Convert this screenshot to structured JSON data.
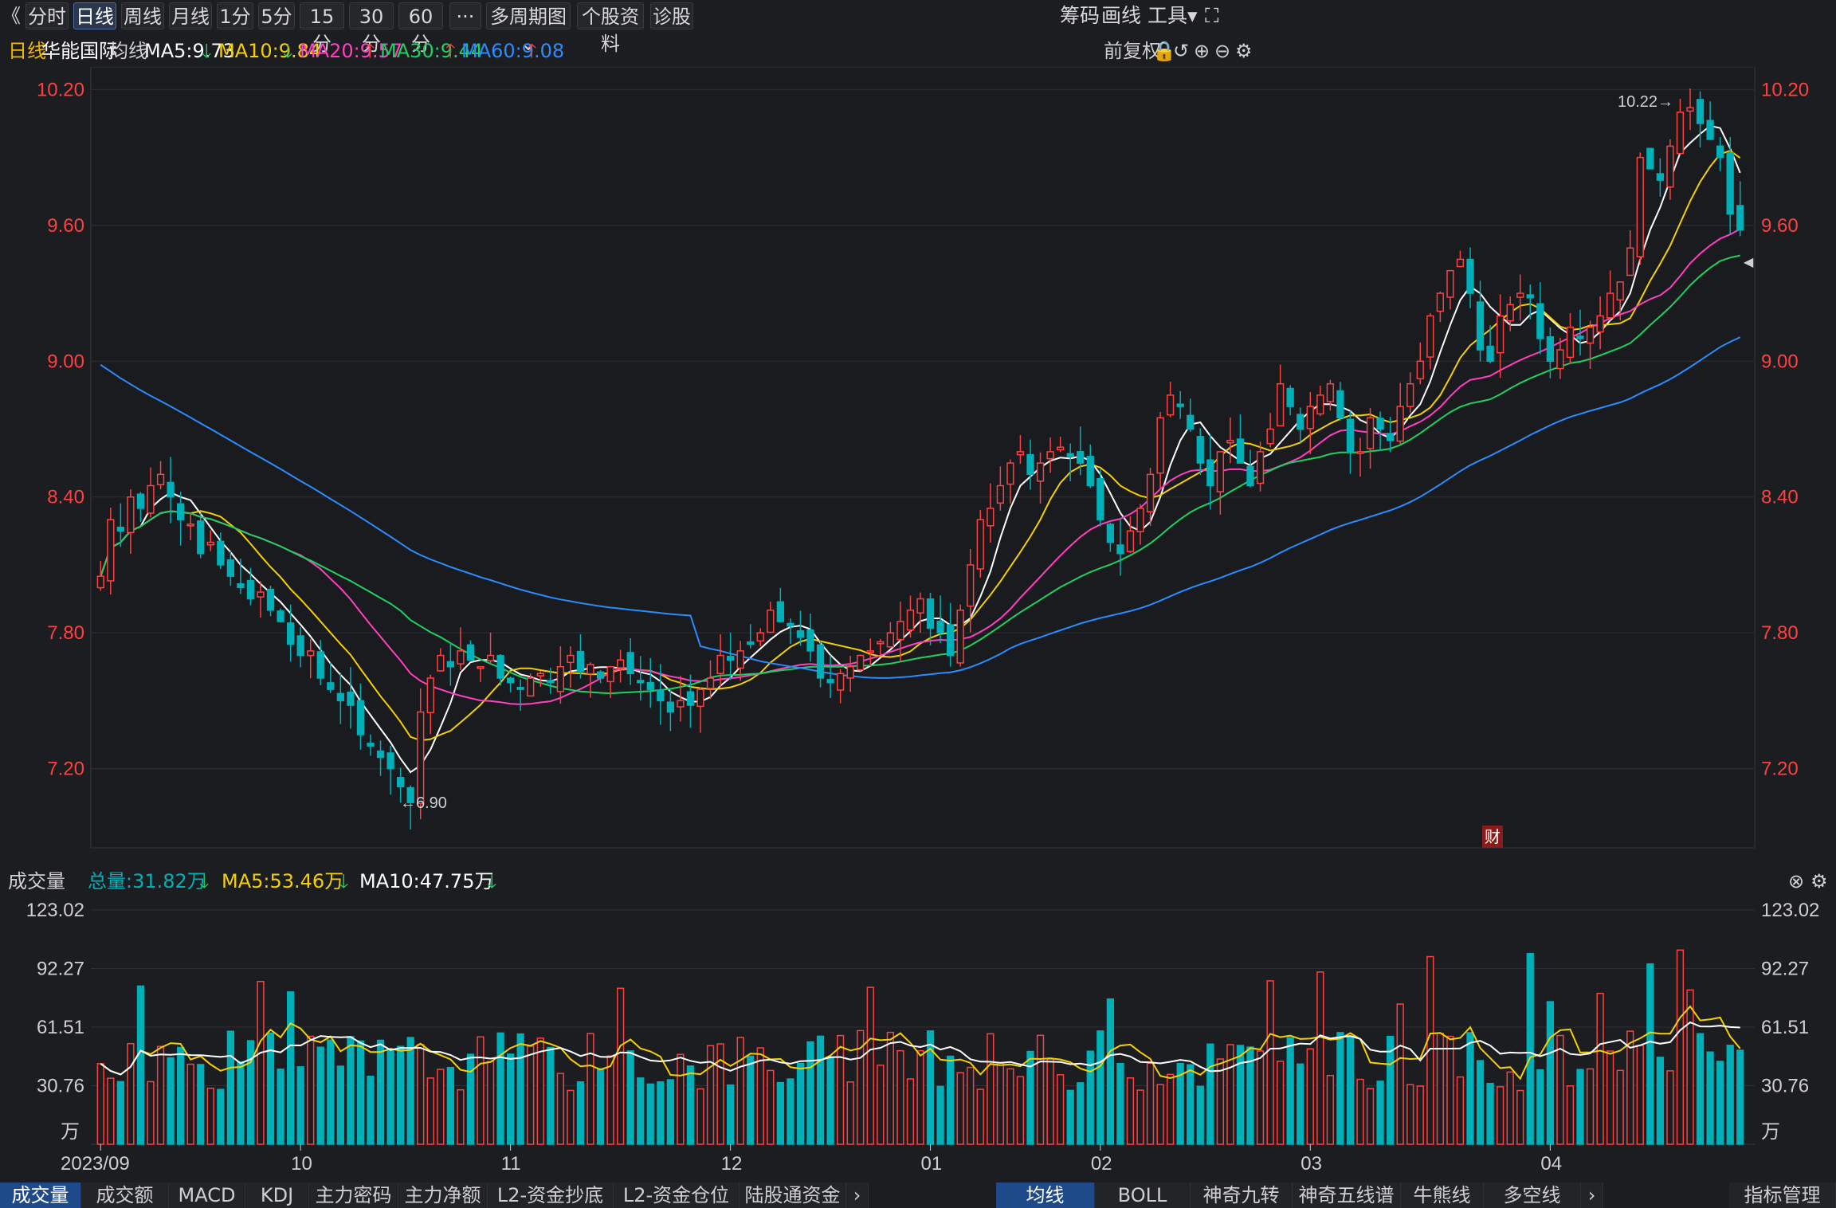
{
  "toolbar": {
    "back_icon": "double-chevron-left-icon",
    "periods": [
      "分时",
      "日线",
      "周线",
      "月线",
      "1分",
      "5分",
      "15分",
      "30分",
      "60分"
    ],
    "active_period": "日线",
    "more_label": "···",
    "multi_period": "多周期图",
    "stock_info": "个股资料",
    "diagnose": "诊股",
    "chips": "筹码",
    "draw": "画线",
    "tools": "工具",
    "fullscreen_icon": "fullscreen-icon"
  },
  "info": {
    "period": "日线",
    "stock_name": "华能国际",
    "ma_label": "均线",
    "ma5": "MA5:9.73",
    "ma10": "MA10:9.84",
    "ma20": "MA20:9.57",
    "ma30": "MA30:9.44",
    "ma60": "MA60:9.08",
    "adjust": "前复权",
    "lock_icon": "lock-icon",
    "undo_icon": "undo-icon",
    "zoom_in_icon": "zoom-in-icon",
    "zoom_out_icon": "zoom-out-icon",
    "settings_icon": "gear-icon"
  },
  "price_axis": {
    "ticks": [
      "10.20",
      "9.60",
      "9.00",
      "8.40",
      "7.80",
      "7.20"
    ],
    "high_annotation": "10.22→",
    "low_annotation": "←6.90",
    "finance_badge": "财"
  },
  "volume_header": {
    "title": "成交量",
    "total": "总量:31.82万",
    "ma5": "MA5:53.46万",
    "ma10": "MA10:47.75万",
    "close_icon": "close-icon",
    "settings_icon": "gear-icon"
  },
  "volume_axis": {
    "ticks": [
      "123.02",
      "92.27",
      "61.51",
      "30.76"
    ],
    "unit": "万"
  },
  "date_axis": [
    "2023/09",
    "10",
    "11",
    "12",
    "01",
    "02",
    "03",
    "04"
  ],
  "bottom_tabs_left": [
    "成交量",
    "成交额",
    "MACD",
    "KDJ",
    "主力密码",
    "主力净额",
    "L2-资金抄底",
    "L2-资金仓位",
    "陆股通资金"
  ],
  "bottom_tabs_right": [
    "均线",
    "BOLL",
    "神奇九转",
    "神奇五线谱",
    "牛熊线",
    "多空线"
  ],
  "bottom_right": "指标管理",
  "colors": {
    "up": "#ff4040",
    "down": "#00b0b8",
    "ma5": "#ffffff",
    "ma10": "#f5d000",
    "ma20": "#ff40c0",
    "ma30": "#20d060",
    "ma60": "#2a8cff",
    "accent": "#f5b800"
  },
  "chart_data": {
    "type": "candlestick",
    "price_range": [
      6.85,
      10.3
    ],
    "ma_values_latest": {
      "MA5": 9.73,
      "MA10": 9.84,
      "MA20": 9.57,
      "MA30": 9.44,
      "MA60": 9.08
    },
    "period_high": 10.22,
    "period_low": 6.9,
    "closes": [
      8.05,
      8.3,
      8.25,
      8.4,
      8.35,
      8.45,
      8.5,
      8.4,
      8.3,
      8.28,
      8.15,
      8.2,
      8.1,
      8.05,
      8.0,
      7.95,
      7.98,
      7.9,
      7.85,
      7.75,
      7.7,
      7.72,
      7.6,
      7.55,
      7.5,
      7.48,
      7.35,
      7.3,
      7.25,
      7.2,
      7.12,
      7.05,
      7.45,
      7.6,
      7.7,
      7.65,
      7.72,
      7.68,
      7.65,
      7.7,
      7.6,
      7.58,
      7.55,
      7.6,
      7.62,
      7.58,
      7.65,
      7.7,
      7.63,
      7.66,
      7.6,
      7.65,
      7.68,
      7.62,
      7.58,
      7.55,
      7.5,
      7.45,
      7.5,
      7.48,
      7.55,
      7.6,
      7.7,
      7.68,
      7.72,
      7.75,
      7.8,
      7.9,
      7.85,
      7.83,
      7.78,
      7.72,
      7.6,
      7.58,
      7.62,
      7.65,
      7.7,
      7.72,
      7.76,
      7.8,
      7.85,
      7.9,
      7.95,
      7.82,
      7.8,
      7.7,
      7.9,
      8.1,
      8.3,
      8.35,
      8.45,
      8.55,
      8.6,
      8.5,
      8.55,
      8.6,
      8.62,
      8.58,
      8.55,
      8.45,
      8.3,
      8.2,
      8.15,
      8.25,
      8.35,
      8.5,
      8.75,
      8.85,
      8.8,
      8.7,
      8.55,
      8.45,
      8.6,
      8.65,
      8.55,
      8.45,
      8.6,
      8.7,
      8.9,
      8.8,
      8.7,
      8.8,
      8.85,
      8.9,
      8.75,
      8.6,
      8.6,
      8.75,
      8.7,
      8.65,
      8.8,
      8.9,
      9.0,
      9.2,
      9.3,
      9.4,
      9.45,
      9.3,
      9.05,
      9.0,
      9.2,
      9.25,
      9.3,
      9.28,
      9.1,
      9.0,
      9.05,
      9.15,
      9.1,
      9.15,
      9.2,
      9.3,
      9.35,
      9.5,
      9.9,
      9.85,
      9.8,
      9.95,
      10.1,
      10.12,
      10.05,
      9.98,
      9.9,
      9.65,
      9.58
    ]
  }
}
